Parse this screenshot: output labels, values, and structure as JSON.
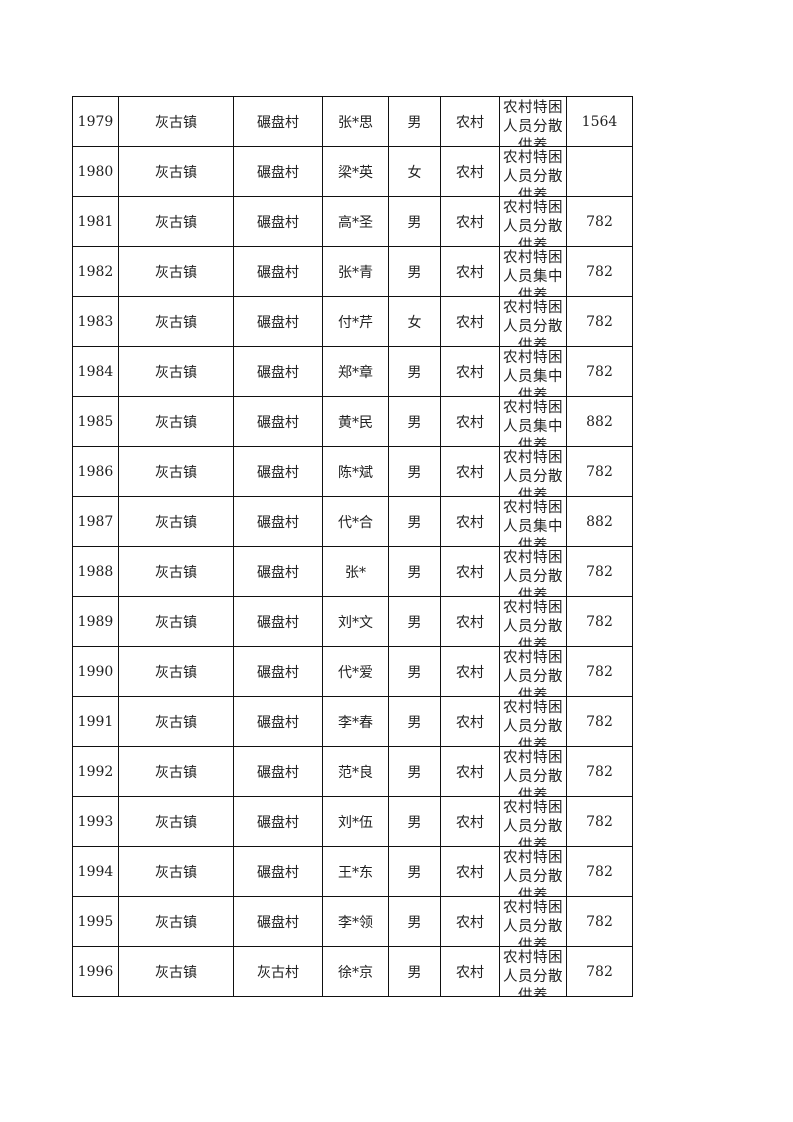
{
  "rows": [
    {
      "no": "1979",
      "town": "灰古镇",
      "village": "碾盘村",
      "name": "张*思",
      "gender": "男",
      "area": "农村",
      "type": "农村特困人员分散供养",
      "amount": "1564"
    },
    {
      "no": "1980",
      "town": "灰古镇",
      "village": "碾盘村",
      "name": "梁*英",
      "gender": "女",
      "area": "农村",
      "type": "农村特困人员分散供养",
      "amount": ""
    },
    {
      "no": "1981",
      "town": "灰古镇",
      "village": "碾盘村",
      "name": "高*圣",
      "gender": "男",
      "area": "农村",
      "type": "农村特困人员分散供养",
      "amount": "782"
    },
    {
      "no": "1982",
      "town": "灰古镇",
      "village": "碾盘村",
      "name": "张*青",
      "gender": "男",
      "area": "农村",
      "type": "农村特困人员集中供养",
      "amount": "782"
    },
    {
      "no": "1983",
      "town": "灰古镇",
      "village": "碾盘村",
      "name": "付*芹",
      "gender": "女",
      "area": "农村",
      "type": "农村特困人员分散供养",
      "amount": "782"
    },
    {
      "no": "1984",
      "town": "灰古镇",
      "village": "碾盘村",
      "name": "郑*章",
      "gender": "男",
      "area": "农村",
      "type": "农村特困人员集中供养",
      "amount": "782"
    },
    {
      "no": "1985",
      "town": "灰古镇",
      "village": "碾盘村",
      "name": "黄*民",
      "gender": "男",
      "area": "农村",
      "type": "农村特困人员集中供养",
      "amount": "882"
    },
    {
      "no": "1986",
      "town": "灰古镇",
      "village": "碾盘村",
      "name": "陈*斌",
      "gender": "男",
      "area": "农村",
      "type": "农村特困人员分散供养",
      "amount": "782"
    },
    {
      "no": "1987",
      "town": "灰古镇",
      "village": "碾盘村",
      "name": "代*合",
      "gender": "男",
      "area": "农村",
      "type": "农村特困人员集中供养",
      "amount": "882"
    },
    {
      "no": "1988",
      "town": "灰古镇",
      "village": "碾盘村",
      "name": "张*",
      "gender": "男",
      "area": "农村",
      "type": "农村特困人员分散供养",
      "amount": "782"
    },
    {
      "no": "1989",
      "town": "灰古镇",
      "village": "碾盘村",
      "name": "刘*文",
      "gender": "男",
      "area": "农村",
      "type": "农村特困人员分散供养",
      "amount": "782"
    },
    {
      "no": "1990",
      "town": "灰古镇",
      "village": "碾盘村",
      "name": "代*爱",
      "gender": "男",
      "area": "农村",
      "type": "农村特困人员分散供养",
      "amount": "782"
    },
    {
      "no": "1991",
      "town": "灰古镇",
      "village": "碾盘村",
      "name": "李*春",
      "gender": "男",
      "area": "农村",
      "type": "农村特困人员分散供养",
      "amount": "782"
    },
    {
      "no": "1992",
      "town": "灰古镇",
      "village": "碾盘村",
      "name": "范*良",
      "gender": "男",
      "area": "农村",
      "type": "农村特困人员分散供养",
      "amount": "782"
    },
    {
      "no": "1993",
      "town": "灰古镇",
      "village": "碾盘村",
      "name": "刘*伍",
      "gender": "男",
      "area": "农村",
      "type": "农村特困人员分散供养",
      "amount": "782"
    },
    {
      "no": "1994",
      "town": "灰古镇",
      "village": "碾盘村",
      "name": "王*东",
      "gender": "男",
      "area": "农村",
      "type": "农村特困人员分散供养",
      "amount": "782"
    },
    {
      "no": "1995",
      "town": "灰古镇",
      "village": "碾盘村",
      "name": "李*领",
      "gender": "男",
      "area": "农村",
      "type": "农村特困人员分散供养",
      "amount": "782"
    },
    {
      "no": "1996",
      "town": "灰古镇",
      "village": "灰古村",
      "name": "徐*京",
      "gender": "男",
      "area": "农村",
      "type": "农村特困人员分散供养",
      "amount": "782"
    }
  ]
}
